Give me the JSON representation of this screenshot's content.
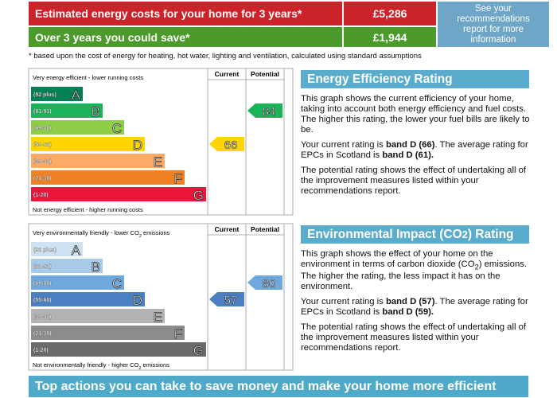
{
  "header": {
    "rows": [
      {
        "label": "Estimated energy costs for your home for 3 years*",
        "value": "£5,286",
        "color": "#cc2229"
      },
      {
        "label": "Over 3 years you could save*",
        "value": "£1,944",
        "color": "#4b9a2b"
      }
    ],
    "note": "See your recommendations report for more information"
  },
  "footnote": "* based upon the cost of energy for heating, hot water, lighting and ventilation, calculated using standard assumptions",
  "ratings": [
    {
      "top_label": [
        {
          "t": "Very energy efficient - lower running costs"
        }
      ],
      "bottom_label": [
        {
          "t": "Not energy efficient - higher running costs"
        }
      ],
      "columns": [
        "Current",
        "Potential"
      ],
      "bands": [
        {
          "range": "(92 plus)",
          "letter": "A",
          "color": "#008054"
        },
        {
          "range": "(81-91)",
          "letter": "B",
          "color": "#19b459"
        },
        {
          "range": "(69-80)",
          "letter": "C",
          "color": "#8dce46"
        },
        {
          "range": "(55-68)",
          "letter": "D",
          "color": "#ffd500"
        },
        {
          "range": "(39-54)",
          "letter": "E",
          "color": "#fcaa65"
        },
        {
          "range": "(21-38)",
          "letter": "F",
          "color": "#ef8023"
        },
        {
          "range": "(1-20)",
          "letter": "G",
          "color": "#e9153b"
        }
      ],
      "current": 66,
      "potential": 84,
      "heading": [
        {
          "t": "Energy Efficiency Rating"
        }
      ],
      "paragraphs": [
        [
          {
            "t": "This graph shows the current efficiency of your home, taking into account both energy efficiency and fuel costs. The higher this rating, the lower your fuel bills are likely to be."
          }
        ],
        [
          {
            "t": "Your current rating is "
          },
          {
            "t": "band D (66)",
            "b": true
          },
          {
            "t": ". The average rating for EPCs in Scotland is "
          },
          {
            "t": "band D (61).",
            "b": true
          }
        ],
        [
          {
            "t": "The potential rating shows the effect of undertaking all of the improvement measures listed within your recommendations report."
          }
        ]
      ]
    },
    {
      "top_label": [
        {
          "t": "Very environmentally friendly - lower CO"
        },
        {
          "t": "2",
          "sub": true
        },
        {
          "t": " emissions"
        }
      ],
      "bottom_label": [
        {
          "t": "Not environmentally friendly - higher CO"
        },
        {
          "t": "2",
          "sub": true
        },
        {
          "t": " emissions"
        }
      ],
      "columns": [
        "Current",
        "Potential"
      ],
      "bands": [
        {
          "range": "(92 plus)",
          "letter": "A",
          "color": "#cfe2f3"
        },
        {
          "range": "(81-91)",
          "letter": "B",
          "color": "#a9cbea"
        },
        {
          "range": "(69-80)",
          "letter": "C",
          "color": "#6fa8dc"
        },
        {
          "range": "(55-68)",
          "letter": "D",
          "color": "#4a7fc1"
        },
        {
          "range": "(39-54)",
          "letter": "E",
          "color": "#b3b3b3"
        },
        {
          "range": "(21-38)",
          "letter": "F",
          "color": "#8c8c8c"
        },
        {
          "range": "(1-20)",
          "letter": "G",
          "color": "#6b6b6b"
        }
      ],
      "current": 57,
      "potential": 80,
      "heading": [
        {
          "t": "Environmental Impact (CO"
        },
        {
          "t": "2",
          "sub": true
        },
        {
          "t": ") Rating"
        }
      ],
      "paragraphs": [
        [
          {
            "t": "This graph shows the effect of your home on the environment in terms of carbon dioxide (CO"
          },
          {
            "t": "2",
            "sub": true
          },
          {
            "t": ") emissions. The higher the rating, the less impact it has on the environment."
          }
        ],
        [
          {
            "t": "Your current rating is "
          },
          {
            "t": "band D (57)",
            "b": true
          },
          {
            "t": ". The average rating for EPCs in Scotland is "
          },
          {
            "t": "band D (59).",
            "b": true
          }
        ],
        [
          {
            "t": "The potential rating shows the effect of undertaking all of the improvement measures listed within your recommendations report."
          }
        ]
      ]
    }
  ],
  "banner": "Top actions you can take to save money and make your home more efficient"
}
